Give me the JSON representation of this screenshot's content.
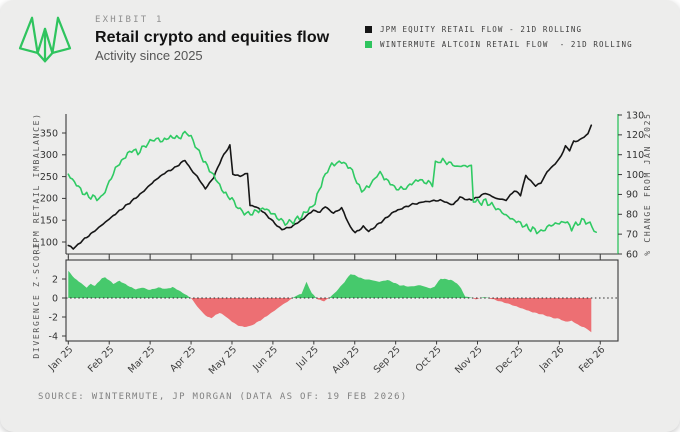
{
  "header": {
    "exhibit_label": "EXHIBIT 1",
    "title": "Retail crypto and equities flow",
    "subtitle": "Activity since 2025"
  },
  "legend": {
    "items": [
      {
        "label": "JPM EQUITY RETAIL FLOW - 21D ROLLING",
        "color": "#161616"
      },
      {
        "label": "WINTERMUTE ALTCOIN RETAIL FLOW  - 21D ROLLING",
        "color": "#2fc45e"
      }
    ]
  },
  "footer": {
    "source": "SOURCE: WINTERMUTE, JP MORGAN (DATA AS OF: 19 FEB 2026)"
  },
  "colors": {
    "brand_green": "#2fc45e",
    "line_black": "#161616",
    "line_green": "#2fca63",
    "zscore_positive": "#46c96c",
    "zscore_negative": "#ed6f73",
    "spine": "#3a3a3a",
    "card_bg": "#ededec"
  },
  "chart_data": [
    {
      "type": "line",
      "title": "Retail crypto and equities flow",
      "x_unit": "months since Jan 2025",
      "x_labels": [
        "Jan 25",
        "Feb 25",
        "Mar 25",
        "Apr 25",
        "May 25",
        "Jun 25",
        "Jul 25",
        "Aug 25",
        "Sep 25",
        "Oct 25",
        "Nov 25",
        "Dec 25",
        "Jan 26",
        "Feb 26"
      ],
      "left_axis": {
        "label": "(JPM RETAIL IMBALANCE)",
        "ticks": [
          350,
          300,
          250,
          200,
          150,
          100
        ],
        "range": [
          65,
          380
        ]
      },
      "right_axis": {
        "label": "% CHANGE FROM JAN 2025",
        "ticks": [
          130,
          120,
          110,
          100,
          90,
          80,
          70,
          60
        ],
        "range": [
          60,
          130
        ]
      },
      "grid": false,
      "legend_position": "top-right",
      "series": [
        {
          "name": "JPM EQUITY RETAIL FLOW - 21D ROLLING",
          "axis": "left",
          "color": "#161616",
          "points": [
            [
              0,
              92
            ],
            [
              0.12,
              85
            ],
            [
              0.3,
              100
            ],
            [
              0.6,
              122
            ],
            [
              0.9,
              145
            ],
            [
              1.2,
              168
            ],
            [
              1.5,
              190
            ],
            [
              1.8,
              213
            ],
            [
              2.1,
              240
            ],
            [
              2.35,
              258
            ],
            [
              2.6,
              270
            ],
            [
              2.85,
              288
            ],
            [
              3.0,
              266
            ],
            [
              3.15,
              250
            ],
            [
              3.35,
              222
            ],
            [
              3.55,
              248
            ],
            [
              3.75,
              292
            ],
            [
              3.95,
              322
            ],
            [
              4.02,
              255
            ],
            [
              4.2,
              250
            ],
            [
              4.38,
              258
            ],
            [
              4.44,
              184
            ],
            [
              4.6,
              180
            ],
            [
              4.75,
              170
            ],
            [
              4.95,
              152
            ],
            [
              5.1,
              138
            ],
            [
              5.22,
              128
            ],
            [
              5.45,
              135
            ],
            [
              5.7,
              150
            ],
            [
              5.99,
              173
            ],
            [
              6.15,
              168
            ],
            [
              6.28,
              181
            ],
            [
              6.48,
              166
            ],
            [
              6.68,
              178
            ],
            [
              6.89,
              135
            ],
            [
              7.01,
              121
            ],
            [
              7.21,
              135
            ],
            [
              7.34,
              124
            ],
            [
              7.7,
              150
            ],
            [
              7.95,
              169
            ],
            [
              8.36,
              185
            ],
            [
              8.68,
              192
            ],
            [
              9.09,
              196
            ],
            [
              9.41,
              185
            ],
            [
              9.57,
              204
            ],
            [
              9.75,
              196
            ],
            [
              9.95,
              200
            ],
            [
              10.2,
              212
            ],
            [
              10.45,
              200
            ],
            [
              10.7,
              196
            ],
            [
              10.9,
              218
            ],
            [
              11.05,
              208
            ],
            [
              11.18,
              253
            ],
            [
              11.3,
              240
            ],
            [
              11.42,
              228
            ],
            [
              11.55,
              235
            ],
            [
              11.7,
              261
            ],
            [
              11.85,
              275
            ],
            [
              12.0,
              290
            ],
            [
              12.15,
              319
            ],
            [
              12.25,
              311
            ],
            [
              12.35,
              330
            ],
            [
              12.5,
              334
            ],
            [
              12.6,
              341
            ],
            [
              12.7,
              348
            ],
            [
              12.78,
              368
            ]
          ]
        },
        {
          "name": "WINTERMUTE ALTCOIN RETAIL FLOW  - 21D ROLLING",
          "axis": "right",
          "color": "#2fca63",
          "points": [
            [
              0,
              100
            ],
            [
              0.2,
              95
            ],
            [
              0.4,
              90
            ],
            [
              0.6,
              88.5
            ],
            [
              0.8,
              88
            ],
            [
              1.0,
              96
            ],
            [
              1.15,
              103
            ],
            [
              1.35,
              108
            ],
            [
              1.55,
              112.5
            ],
            [
              1.7,
              111
            ],
            [
              1.9,
              115
            ],
            [
              2.1,
              118
            ],
            [
              2.3,
              117
            ],
            [
              2.5,
              119
            ],
            [
              2.7,
              118.5
            ],
            [
              2.9,
              121.5
            ],
            [
              3.05,
              117
            ],
            [
              3.2,
              111
            ],
            [
              3.4,
              104
            ],
            [
              3.6,
              98
            ],
            [
              3.8,
              91
            ],
            [
              4.0,
              87.5
            ],
            [
              4.2,
              82
            ],
            [
              4.4,
              80
            ],
            [
              4.6,
              81.5
            ],
            [
              4.8,
              83
            ],
            [
              4.95,
              81
            ],
            [
              5.1,
              78.5
            ],
            [
              5.3,
              75.5
            ],
            [
              5.5,
              76.5
            ],
            [
              5.7,
              79
            ],
            [
              5.9,
              83
            ],
            [
              6.03,
              86
            ],
            [
              6.23,
              98
            ],
            [
              6.44,
              105.3
            ],
            [
              6.68,
              106.2
            ],
            [
              6.89,
              103.7
            ],
            [
              7.05,
              96.3
            ],
            [
              7.17,
              92.2
            ],
            [
              7.35,
              94
            ],
            [
              7.54,
              99.5
            ],
            [
              7.62,
              100.4
            ],
            [
              7.87,
              95.5
            ],
            [
              8.07,
              92.2
            ],
            [
              8.25,
              93
            ],
            [
              8.44,
              96.4
            ],
            [
              8.6,
              97.2
            ],
            [
              8.75,
              96
            ],
            [
              8.9,
              95.5
            ],
            [
              8.97,
              106.2
            ],
            [
              9.1,
              107
            ],
            [
              9.3,
              106
            ],
            [
              9.5,
              104
            ],
            [
              9.7,
              104.5
            ],
            [
              9.85,
              104
            ],
            [
              9.9,
              87
            ],
            [
              10.05,
              86
            ],
            [
              10.2,
              86.5
            ],
            [
              10.4,
              84
            ],
            [
              10.6,
              81
            ],
            [
              10.8,
              78
            ],
            [
              11.0,
              76
            ],
            [
              11.2,
              73.5
            ],
            [
              11.4,
              72
            ],
            [
              11.55,
              71
            ],
            [
              11.7,
              73.5
            ],
            [
              11.85,
              75
            ],
            [
              12.0,
              75.5
            ],
            [
              12.15,
              76.5
            ],
            [
              12.3,
              73
            ],
            [
              12.45,
              75.5
            ],
            [
              12.6,
              77
            ],
            [
              12.75,
              75
            ],
            [
              12.9,
              71
            ]
          ]
        }
      ]
    },
    {
      "type": "area",
      "ylabel": "DIVERGENCE Z-SCORE",
      "yticks": [
        2,
        0,
        -2,
        -4
      ],
      "ylim": [
        -4.3,
        3.2
      ],
      "zero_line": "dotted",
      "positive_color": "#46c96c",
      "negative_color": "#ed6f73",
      "points": [
        [
          0,
          2.85
        ],
        [
          0.15,
          2.1
        ],
        [
          0.37,
          1.35
        ],
        [
          0.45,
          1.1
        ],
        [
          0.55,
          1.5
        ],
        [
          0.65,
          1.25
        ],
        [
          0.82,
          2.1
        ],
        [
          0.9,
          2.2
        ],
        [
          1.1,
          1.5
        ],
        [
          1.25,
          1.8
        ],
        [
          1.5,
          1.2
        ],
        [
          1.65,
          0.9
        ],
        [
          1.8,
          1.1
        ],
        [
          2.0,
          0.85
        ],
        [
          2.2,
          1.1
        ],
        [
          2.4,
          0.95
        ],
        [
          2.55,
          1.15
        ],
        [
          2.7,
          0.8
        ],
        [
          2.85,
          0.4
        ],
        [
          3.0,
          0
        ],
        [
          3.1,
          -0.6
        ],
        [
          3.25,
          -1.4
        ],
        [
          3.4,
          -2.0
        ],
        [
          3.5,
          -2.1
        ],
        [
          3.6,
          -1.8
        ],
        [
          3.7,
          -1.55
        ],
        [
          3.85,
          -1.95
        ],
        [
          4.0,
          -2.5
        ],
        [
          4.15,
          -2.9
        ],
        [
          4.3,
          -3.05
        ],
        [
          4.45,
          -2.95
        ],
        [
          4.6,
          -2.6
        ],
        [
          4.75,
          -2.2
        ],
        [
          4.9,
          -1.75
        ],
        [
          5.05,
          -1.3
        ],
        [
          5.2,
          -0.8
        ],
        [
          5.35,
          -0.4
        ],
        [
          5.45,
          -0.1
        ],
        [
          5.55,
          0.2
        ],
        [
          5.7,
          0.45
        ],
        [
          5.82,
          1.7
        ],
        [
          5.95,
          0.5
        ],
        [
          6.1,
          -0.15
        ],
        [
          6.25,
          -0.35
        ],
        [
          6.4,
          0.1
        ],
        [
          6.55,
          0.7
        ],
        [
          6.75,
          1.7
        ],
        [
          6.9,
          2.55
        ],
        [
          7.05,
          2.3
        ],
        [
          7.2,
          2.0
        ],
        [
          7.4,
          1.9
        ],
        [
          7.6,
          1.7
        ],
        [
          7.8,
          1.9
        ],
        [
          8.1,
          1.35
        ],
        [
          8.35,
          1.2
        ],
        [
          8.6,
          1.35
        ],
        [
          8.85,
          1.0
        ],
        [
          8.95,
          1.2
        ],
        [
          9.1,
          2.05
        ],
        [
          9.35,
          1.9
        ],
        [
          9.5,
          1.55
        ],
        [
          9.6,
          1.0
        ],
        [
          9.7,
          0.15
        ],
        [
          9.85,
          0.05
        ],
        [
          9.95,
          -0.15
        ],
        [
          10.15,
          0.1
        ],
        [
          10.35,
          -0.1
        ],
        [
          10.55,
          -0.35
        ],
        [
          10.75,
          -0.6
        ],
        [
          10.95,
          -0.9
        ],
        [
          11.15,
          -1.2
        ],
        [
          11.35,
          -1.5
        ],
        [
          11.55,
          -1.7
        ],
        [
          11.7,
          -1.9
        ],
        [
          11.85,
          -2.1
        ],
        [
          12.0,
          -2.2
        ],
        [
          12.15,
          -2.5
        ],
        [
          12.3,
          -2.4
        ],
        [
          12.45,
          -2.8
        ],
        [
          12.6,
          -3.1
        ],
        [
          12.7,
          -3.3
        ],
        [
          12.78,
          -3.6
        ]
      ]
    }
  ]
}
